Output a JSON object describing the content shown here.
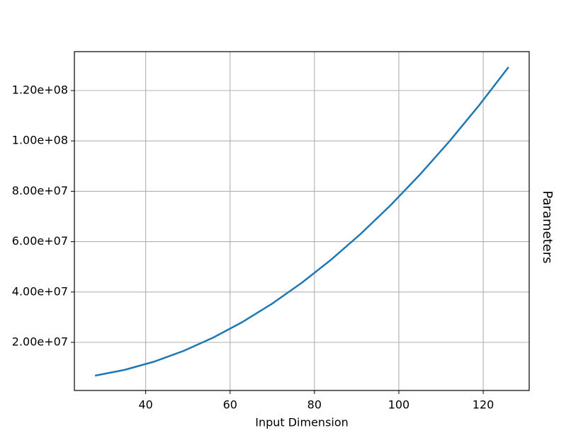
{
  "chart_data": {
    "type": "line",
    "xlabel": "Input Dimension",
    "ylabel": "Parameters",
    "x": [
      28,
      35,
      42,
      49,
      56,
      63,
      70,
      77,
      84,
      91,
      98,
      105,
      112,
      119,
      126
    ],
    "series": [
      {
        "color": "#1f77b4",
        "values": [
          6800000,
          9080000,
          12350000,
          16620000,
          21890000,
          28150000,
          35410000,
          43660000,
          52910000,
          63150000,
          74390000,
          86630000,
          99860000,
          114080000,
          129300000
        ]
      }
    ],
    "xlim": [
      23.1,
      130.9
    ],
    "xticks": [
      40,
      60,
      80,
      100,
      120
    ],
    "ylim": [
      900000,
      135450000
    ],
    "yticks": [
      {
        "value": 20000000,
        "label": "2.00e+07"
      },
      {
        "value": 40000000,
        "label": "4.00e+07"
      },
      {
        "value": 60000000,
        "label": "6.00e+07"
      },
      {
        "value": 80000000,
        "label": "8.00e+07"
      },
      {
        "value": 100000000,
        "label": "1.00e+08"
      },
      {
        "value": 120000000,
        "label": "1.20e+08"
      }
    ],
    "grid": true
  }
}
